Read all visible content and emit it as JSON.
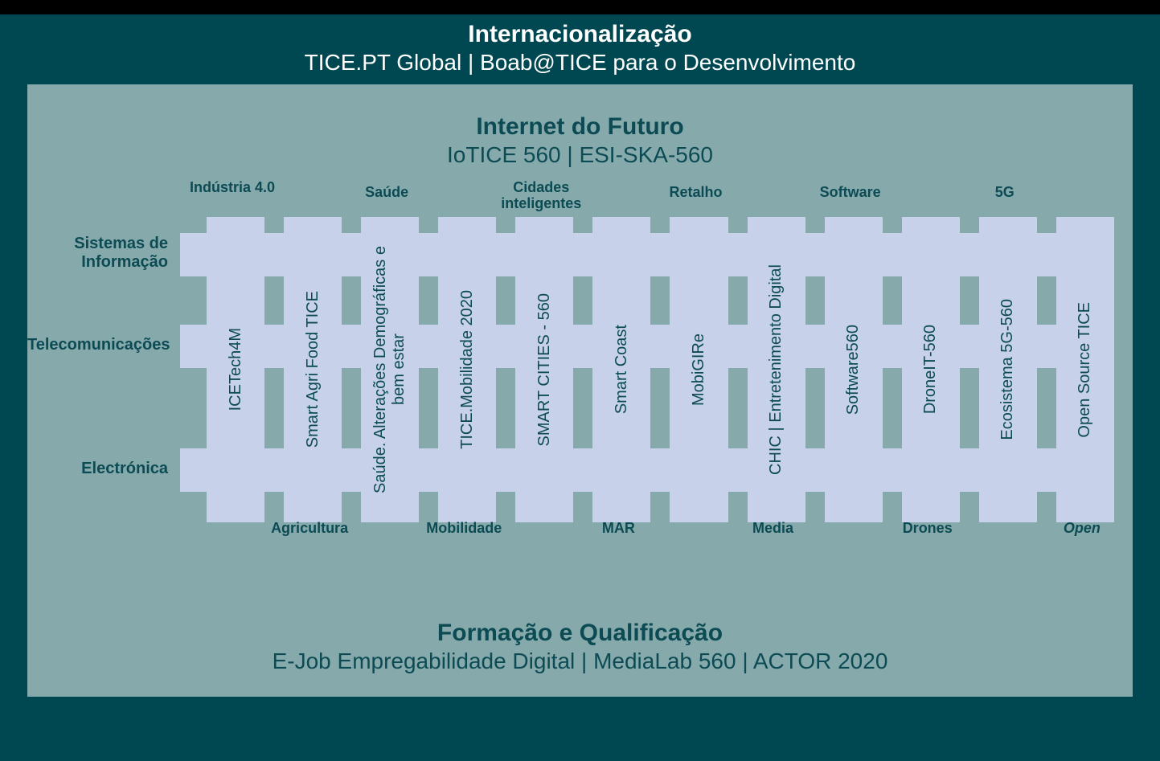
{
  "colors": {
    "page_bg": "#004851",
    "black_bar": "#000000",
    "panel_bg": "#86aaab",
    "band_bg": "#c7d1e9",
    "text_dark": "#0c4b54",
    "text_light": "#ffffff"
  },
  "typography": {
    "title_fontsize": 30,
    "subtitle_fontsize": 28,
    "row_label_fontsize": 20,
    "column_label_fontsize": 20,
    "category_fontsize": 18
  },
  "header": {
    "title": "Internacionalização",
    "subtitle": "TICE.PT Global | Boab@TICE para o Desenvolvimento"
  },
  "panel_top": {
    "title": "Internet do Futuro",
    "subtitle": "IoTICE 560 | ESI-SKA-560"
  },
  "panel_bottom": {
    "title": "Formação e Qualificação",
    "subtitle": "E-Job Empregabilidade Digital | MediaLab 560 | ACTOR 2020"
  },
  "row_labels": [
    "Sistemas de Informação",
    "Telecomunicações",
    "Electrónica"
  ],
  "categories_top": [
    {
      "col": 0,
      "label": "Indústria 4.0",
      "twoLine": true
    },
    {
      "col": 2,
      "label": "Saúde",
      "twoLine": false
    },
    {
      "col": 4,
      "label": "Cidades inteligentes",
      "twoLine": true
    },
    {
      "col": 6,
      "label": "Retalho",
      "twoLine": false
    },
    {
      "col": 8,
      "label": "Software",
      "twoLine": false
    },
    {
      "col": 10,
      "label": "5G",
      "twoLine": false
    }
  ],
  "categories_bottom": [
    {
      "col": 1,
      "label": "Agricultura",
      "italic": false
    },
    {
      "col": 3,
      "label": "Mobilidade",
      "italic": false
    },
    {
      "col": 5,
      "label": "MAR",
      "italic": false
    },
    {
      "col": 7,
      "label": "Media",
      "italic": false
    },
    {
      "col": 9,
      "label": "Drones",
      "italic": false
    },
    {
      "col": 11,
      "label": "Open",
      "italic": true
    }
  ],
  "columns": [
    "ICETech4M",
    "Smart Agri Food TICE",
    "Saúde. Alterações Demográficas e bem estar",
    "TICE.Mobilidade 2020",
    "SMART CITIES - 560",
    "Smart Coast",
    "MobiGIRe",
    "CHIC | Entretenimento Digital",
    "Software560",
    "DroneIT-560",
    "Ecosistema 5G-560",
    "Open Source TICE"
  ]
}
